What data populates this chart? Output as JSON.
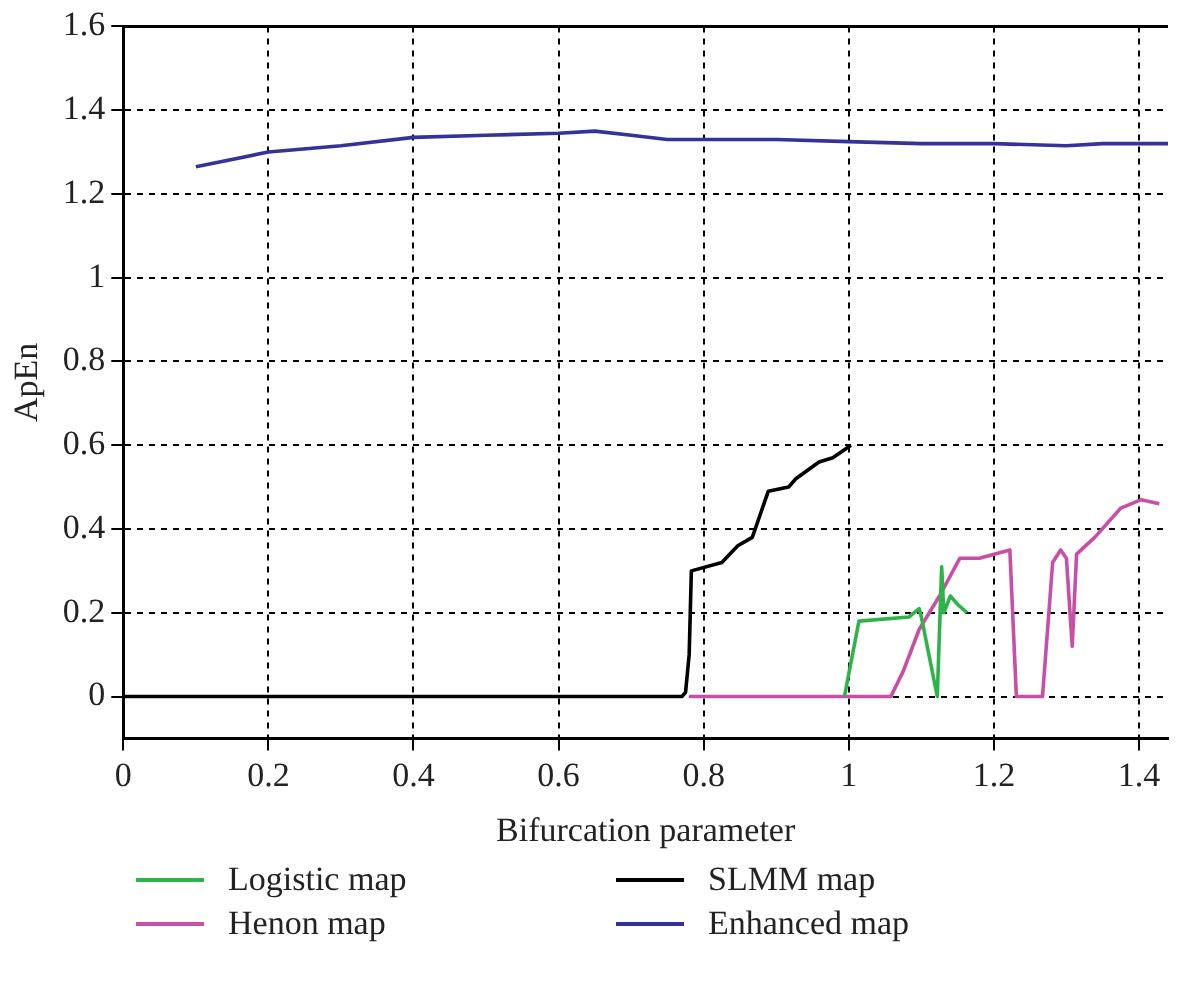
{
  "chart_data": {
    "type": "line",
    "xlabel": "Bifurcation parameter",
    "ylabel": "ApEn",
    "xlim": [
      0,
      1.44
    ],
    "xticks": [
      0,
      0.2,
      0.4,
      0.6,
      0.8,
      1,
      1.2,
      1.4
    ],
    "ylim": [
      -0.1,
      1.6
    ],
    "yticks": [
      0,
      0.2,
      0.4,
      0.6,
      0.8,
      1,
      1.2,
      1.4,
      1.6
    ],
    "grid": true,
    "legend": "bottom",
    "marker": "none",
    "line_style": "solid",
    "series": [
      {
        "name": "Logistic map",
        "color": "#2db34a",
        "x": [
          0.994,
          1.014,
          1.083,
          1.097,
          1.1,
          1.122,
          1.128,
          1.131,
          1.14,
          1.15,
          1.163
        ],
        "values": [
          0,
          0.18,
          0.19,
          0.21,
          0.19,
          0,
          0.31,
          0.2,
          0.24,
          0.22,
          0.2
        ]
      },
      {
        "name": "SLMM map",
        "color": "#000000",
        "x": [
          0,
          0.77,
          0.775,
          0.78,
          0.783,
          0.825,
          0.847,
          0.867,
          0.889,
          0.917,
          0.927,
          0.959,
          0.978,
          1.003
        ],
        "values": [
          0,
          0,
          0.01,
          0.1,
          0.3,
          0.32,
          0.36,
          0.38,
          0.49,
          0.5,
          0.52,
          0.56,
          0.57,
          0.6
        ]
      },
      {
        "name": "Henon map",
        "color": "#c94fa6",
        "x": [
          0.78,
          1.058,
          1.075,
          1.097,
          1.125,
          1.153,
          1.18,
          1.222,
          1.231,
          1.267,
          1.281,
          1.292,
          1.3,
          1.308,
          1.314,
          1.339,
          1.375,
          1.403,
          1.428
        ],
        "values": [
          0,
          0,
          0.06,
          0.16,
          0.24,
          0.33,
          0.33,
          0.35,
          0,
          0,
          0.32,
          0.35,
          0.33,
          0.12,
          0.34,
          0.38,
          0.45,
          0.47,
          0.46
        ]
      },
      {
        "name": "Enhanced map",
        "color": "#333399",
        "x": [
          0.1,
          0.2,
          0.3,
          0.4,
          0.5,
          0.6,
          0.65,
          0.7,
          0.75,
          0.9,
          1,
          1.1,
          1.2,
          1.3,
          1.35,
          1.44
        ],
        "values": [
          1.265,
          1.3,
          1.315,
          1.335,
          1.34,
          1.345,
          1.35,
          1.34,
          1.33,
          1.33,
          1.325,
          1.32,
          1.32,
          1.315,
          1.32,
          1.32
        ]
      }
    ]
  }
}
